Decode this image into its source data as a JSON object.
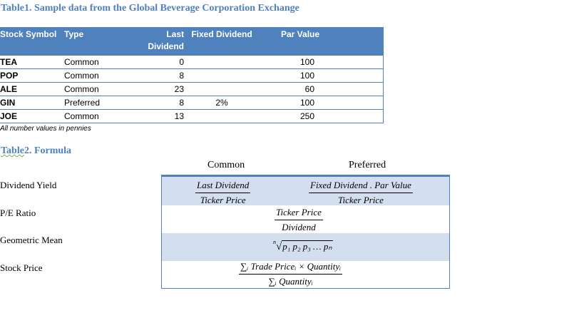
{
  "table1": {
    "caption": "Table1. Sample data from the Global Beverage Corporation Exchange",
    "headers": {
      "symbol": "Stock Symbol",
      "type": "Type",
      "last_dividend": "Last Dividend",
      "fixed_dividend": "Fixed Dividend",
      "par_value": "Par Value"
    },
    "rows": [
      {
        "symbol": "TEA",
        "type": "Common",
        "last_dividend": "0",
        "fixed_dividend": "",
        "par_value": "100"
      },
      {
        "symbol": "POP",
        "type": "Common",
        "last_dividend": "8",
        "fixed_dividend": "",
        "par_value": "100"
      },
      {
        "symbol": "ALE",
        "type": "Common",
        "last_dividend": "23",
        "fixed_dividend": "",
        "par_value": "60"
      },
      {
        "symbol": "GIN",
        "type": "Preferred",
        "last_dividend": "8",
        "fixed_dividend": "2%",
        "par_value": "100"
      },
      {
        "symbol": "JOE",
        "type": "Common",
        "last_dividend": "13",
        "fixed_dividend": "",
        "par_value": "250"
      }
    ],
    "note": "All number values in pennies"
  },
  "table2": {
    "caption_word": "Table",
    "caption_rest": "2. Formula",
    "col_common": "Common",
    "col_preferred": "Preferred",
    "rows": {
      "dividend_yield": {
        "label": "Dividend Yield",
        "common_num": "Last Dividend",
        "common_den": "Ticker Price",
        "preferred_num": "Fixed Dividend . Par Value",
        "preferred_den": "Ticker Price"
      },
      "pe_ratio": {
        "label": "P/E Ratio",
        "num": "Ticker Price",
        "den": "Dividend"
      },
      "geometric_mean": {
        "label": "Geometric Mean",
        "index": "n",
        "radical": "√",
        "radicand": "p₁ p₂ p₃ … pₙ"
      },
      "stock_price": {
        "label": "Stock Price",
        "num": "∑ᵢ Trade Priceᵢ × Quantityᵢ",
        "den": "∑ᵢ Quantityᵢ"
      }
    }
  }
}
